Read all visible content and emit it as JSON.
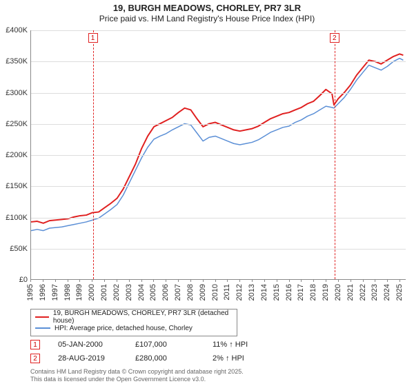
{
  "title": {
    "main": "19, BURGH MEADOWS, CHORLEY, PR7 3LR",
    "sub": "Price paid vs. HM Land Registry's House Price Index (HPI)"
  },
  "chart": {
    "type": "line",
    "background_color": "#ffffff",
    "grid_color": "#dddddd",
    "axis_color": "#888888",
    "label_fontsize": 11,
    "x": {
      "min": 1995,
      "max": 2025.5,
      "ticks": [
        1995,
        1996,
        1997,
        1998,
        1999,
        2000,
        2001,
        2002,
        2003,
        2004,
        2005,
        2006,
        2007,
        2008,
        2009,
        2010,
        2011,
        2012,
        2013,
        2014,
        2015,
        2016,
        2017,
        2018,
        2019,
        2020,
        2021,
        2022,
        2023,
        2024,
        2025
      ]
    },
    "y": {
      "min": 0,
      "max": 400000,
      "step": 50000,
      "format": "£{k}K",
      "ticks": [
        0,
        50000,
        100000,
        150000,
        200000,
        250000,
        300000,
        350000,
        400000
      ]
    },
    "series": [
      {
        "name": "19, BURGH MEADOWS, CHORLEY, PR7 3LR (detached house)",
        "color": "#e02020",
        "width": 2,
        "points": [
          [
            1995.0,
            92000
          ],
          [
            1995.5,
            93000
          ],
          [
            1996.0,
            90000
          ],
          [
            1996.5,
            94000
          ],
          [
            1997.0,
            95000
          ],
          [
            1997.5,
            96000
          ],
          [
            1998.0,
            97000
          ],
          [
            1998.5,
            100000
          ],
          [
            1999.0,
            102000
          ],
          [
            1999.5,
            103000
          ],
          [
            2000.0,
            107000
          ],
          [
            2000.5,
            108000
          ],
          [
            2001.0,
            115000
          ],
          [
            2001.5,
            122000
          ],
          [
            2002.0,
            130000
          ],
          [
            2002.5,
            145000
          ],
          [
            2003.0,
            165000
          ],
          [
            2003.5,
            185000
          ],
          [
            2004.0,
            210000
          ],
          [
            2004.5,
            230000
          ],
          [
            2005.0,
            245000
          ],
          [
            2005.5,
            250000
          ],
          [
            2006.0,
            255000
          ],
          [
            2006.5,
            260000
          ],
          [
            2007.0,
            268000
          ],
          [
            2007.5,
            275000
          ],
          [
            2008.0,
            272000
          ],
          [
            2008.5,
            258000
          ],
          [
            2009.0,
            245000
          ],
          [
            2009.5,
            250000
          ],
          [
            2010.0,
            252000
          ],
          [
            2010.5,
            248000
          ],
          [
            2011.0,
            244000
          ],
          [
            2011.5,
            240000
          ],
          [
            2012.0,
            238000
          ],
          [
            2012.5,
            240000
          ],
          [
            2013.0,
            242000
          ],
          [
            2013.5,
            246000
          ],
          [
            2014.0,
            252000
          ],
          [
            2014.5,
            258000
          ],
          [
            2015.0,
            262000
          ],
          [
            2015.5,
            266000
          ],
          [
            2016.0,
            268000
          ],
          [
            2016.5,
            272000
          ],
          [
            2017.0,
            276000
          ],
          [
            2017.5,
            282000
          ],
          [
            2018.0,
            286000
          ],
          [
            2018.5,
            295000
          ],
          [
            2019.0,
            305000
          ],
          [
            2019.5,
            298000
          ],
          [
            2019.66,
            280000
          ],
          [
            2020.0,
            290000
          ],
          [
            2020.5,
            300000
          ],
          [
            2021.0,
            312000
          ],
          [
            2021.5,
            328000
          ],
          [
            2022.0,
            340000
          ],
          [
            2022.5,
            352000
          ],
          [
            2023.0,
            350000
          ],
          [
            2023.5,
            346000
          ],
          [
            2024.0,
            352000
          ],
          [
            2024.5,
            358000
          ],
          [
            2025.0,
            362000
          ],
          [
            2025.3,
            360000
          ]
        ]
      },
      {
        "name": "HPI: Average price, detached house, Chorley",
        "color": "#5b8fd6",
        "width": 1.5,
        "points": [
          [
            1995.0,
            78000
          ],
          [
            1995.5,
            80000
          ],
          [
            1996.0,
            78000
          ],
          [
            1996.5,
            82000
          ],
          [
            1997.0,
            83000
          ],
          [
            1997.5,
            84000
          ],
          [
            1998.0,
            86000
          ],
          [
            1998.5,
            88000
          ],
          [
            1999.0,
            90000
          ],
          [
            1999.5,
            92000
          ],
          [
            2000.0,
            95000
          ],
          [
            2000.5,
            98000
          ],
          [
            2001.0,
            105000
          ],
          [
            2001.5,
            112000
          ],
          [
            2002.0,
            120000
          ],
          [
            2002.5,
            135000
          ],
          [
            2003.0,
            155000
          ],
          [
            2003.5,
            175000
          ],
          [
            2004.0,
            195000
          ],
          [
            2004.5,
            212000
          ],
          [
            2005.0,
            225000
          ],
          [
            2005.5,
            230000
          ],
          [
            2006.0,
            234000
          ],
          [
            2006.5,
            240000
          ],
          [
            2007.0,
            245000
          ],
          [
            2007.5,
            250000
          ],
          [
            2008.0,
            248000
          ],
          [
            2008.5,
            235000
          ],
          [
            2009.0,
            222000
          ],
          [
            2009.5,
            228000
          ],
          [
            2010.0,
            230000
          ],
          [
            2010.5,
            226000
          ],
          [
            2011.0,
            222000
          ],
          [
            2011.5,
            218000
          ],
          [
            2012.0,
            216000
          ],
          [
            2012.5,
            218000
          ],
          [
            2013.0,
            220000
          ],
          [
            2013.5,
            224000
          ],
          [
            2014.0,
            230000
          ],
          [
            2014.5,
            236000
          ],
          [
            2015.0,
            240000
          ],
          [
            2015.5,
            244000
          ],
          [
            2016.0,
            246000
          ],
          [
            2016.5,
            252000
          ],
          [
            2017.0,
            256000
          ],
          [
            2017.5,
            262000
          ],
          [
            2018.0,
            266000
          ],
          [
            2018.5,
            272000
          ],
          [
            2019.0,
            278000
          ],
          [
            2019.5,
            276000
          ],
          [
            2019.66,
            275000
          ],
          [
            2020.0,
            282000
          ],
          [
            2020.5,
            292000
          ],
          [
            2021.0,
            305000
          ],
          [
            2021.5,
            320000
          ],
          [
            2022.0,
            332000
          ],
          [
            2022.5,
            344000
          ],
          [
            2023.0,
            340000
          ],
          [
            2023.5,
            336000
          ],
          [
            2024.0,
            342000
          ],
          [
            2024.5,
            350000
          ],
          [
            2025.0,
            355000
          ],
          [
            2025.3,
            352000
          ]
        ]
      }
    ],
    "markers": [
      {
        "n": "1",
        "x": 2000.02
      },
      {
        "n": "2",
        "x": 2019.66
      }
    ]
  },
  "legend": {
    "items": [
      {
        "color": "#e02020",
        "label": "19, BURGH MEADOWS, CHORLEY, PR7 3LR (detached house)"
      },
      {
        "color": "#5b8fd6",
        "label": "HPI: Average price, detached house, Chorley"
      }
    ]
  },
  "sales": [
    {
      "n": "1",
      "date": "05-JAN-2000",
      "price": "£107,000",
      "delta": "11% ↑ HPI"
    },
    {
      "n": "2",
      "date": "28-AUG-2019",
      "price": "£280,000",
      "delta": "2% ↑ HPI"
    }
  ],
  "footnote": {
    "line1": "Contains HM Land Registry data © Crown copyright and database right 2025.",
    "line2": "This data is licensed under the Open Government Licence v3.0."
  }
}
